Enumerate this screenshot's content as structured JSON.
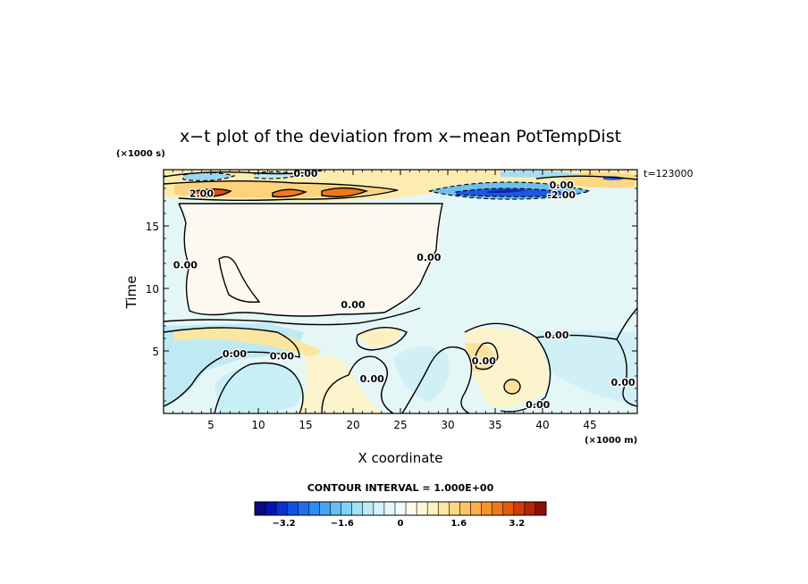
{
  "chart_data": {
    "type": "heatmap",
    "title": "x−t plot of the deviation from x−mean PotTempDist",
    "xlabel": "X coordinate",
    "ylabel": "Time",
    "x_unit": "(×1000 m)",
    "y_unit": "(×1000 s)",
    "xlim": [
      0,
      50
    ],
    "ylim": [
      0,
      19.5
    ],
    "xticks": [
      5,
      10,
      15,
      20,
      25,
      30,
      35,
      40,
      45
    ],
    "yticks": [
      5,
      10,
      15
    ],
    "time_label": "t=123000",
    "contour_interval_text": "CONTOUR INTERVAL = 1.000E+00",
    "contour_labels": [
      {
        "text": "0.00",
        "x": 15,
        "y": 19.2
      },
      {
        "text": "2.00",
        "x": 4,
        "y": 17.6
      },
      {
        "text": "0.00",
        "x": 42,
        "y": 18.3
      },
      {
        "text": "-2.00",
        "x": 42,
        "y": 17.5
      },
      {
        "text": "0.00",
        "x": 2.3,
        "y": 11.9
      },
      {
        "text": "0.00",
        "x": 28,
        "y": 12.5
      },
      {
        "text": "0.00",
        "x": 20,
        "y": 8.7
      },
      {
        "text": "0.00",
        "x": 41.5,
        "y": 6.3
      },
      {
        "text": "0.00",
        "x": 7.5,
        "y": 4.8
      },
      {
        "text": "0.00",
        "x": 12.5,
        "y": 4.6
      },
      {
        "text": "0.00",
        "x": 22,
        "y": 2.8
      },
      {
        "text": "0.00",
        "x": 33.8,
        "y": 4.2
      },
      {
        "text": "0.00",
        "x": 39.5,
        "y": 0.7
      },
      {
        "text": "0.00",
        "x": 48.5,
        "y": 2.5
      }
    ],
    "colorbar": {
      "vmin": -4,
      "vmax": 4,
      "tick_values": [
        -3.2,
        -1.6,
        0,
        1.6,
        3.2
      ],
      "tick_labels": [
        "−3.2",
        "−1.6",
        "0",
        "1.6",
        "3.2"
      ],
      "colors": [
        "#0a0a7a",
        "#0014b4",
        "#0a32d2",
        "#1450e6",
        "#1e6ef0",
        "#2d8cf5",
        "#46a5f5",
        "#64bef5",
        "#82d2f5",
        "#a0e1f5",
        "#bcebf5",
        "#d2f2f8",
        "#e6f8fa",
        "#f2fcfc",
        "#fcfcee",
        "#fcf8d8",
        "#fcf0c0",
        "#fce6a2",
        "#fcd884",
        "#fcc464",
        "#fcae4a",
        "#f8942e",
        "#f07818",
        "#e45a0e",
        "#d23c08",
        "#b42408",
        "#8c1008"
      ]
    },
    "features": [
      {
        "name": "upper warm band",
        "x": [
          0,
          50
        ],
        "t": [
          17.5,
          19.5
        ],
        "sign": "positive"
      },
      {
        "name": "upper cold band",
        "x": [
          28,
          45
        ],
        "t": [
          17.3,
          18.4
        ],
        "sign": "negative"
      },
      {
        "name": "mixed layer",
        "x": [
          2,
          29
        ],
        "t": [
          7.5,
          17.3
        ],
        "sign": "near zero"
      },
      {
        "name": "lower eddies",
        "x": [
          0,
          50
        ],
        "t": [
          0,
          7
        ],
        "sign": "mixed"
      }
    ]
  }
}
